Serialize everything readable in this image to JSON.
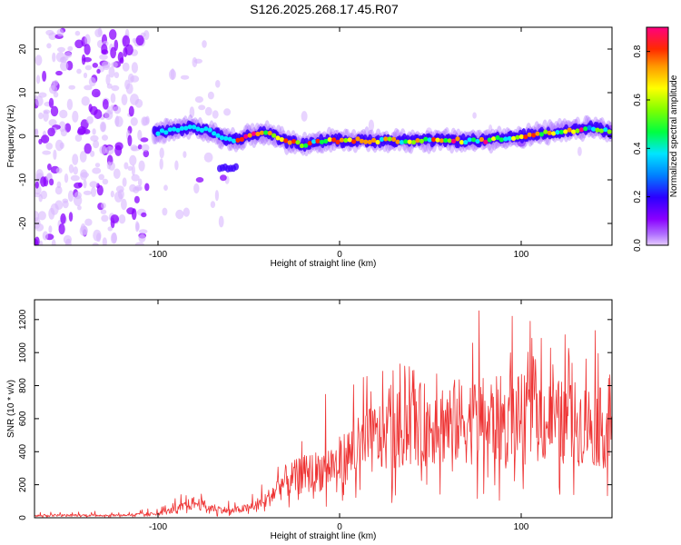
{
  "page": {
    "title": "S126.2025.268.17.45.R07"
  },
  "chart_data": [
    {
      "type": "heatmap",
      "title": "S126.2025.268.17.45.R07",
      "xlabel": "Height of straight line (km)",
      "ylabel": "Frequency (Hz)",
      "xlim": [
        -168,
        150
      ],
      "ylim": [
        -25,
        25
      ],
      "x_ticks": [
        -100,
        0,
        100
      ],
      "y_ticks": [
        -20,
        -10,
        0,
        10,
        20
      ],
      "colorbar": {
        "label": "Normalized spectral amplitude",
        "range": [
          0.0,
          0.9
        ],
        "ticks": [
          0.0,
          0.2,
          0.4,
          0.6,
          0.8
        ],
        "colormap": [
          "#e6ccff",
          "#8a00ff",
          "#2b00ff",
          "#0080ff",
          "#00e5ff",
          "#00ff40",
          "#80ff00",
          "#ffff00",
          "#ff9900",
          "#ff2a00",
          "#ff0080"
        ]
      },
      "signal_ridge": {
        "description_points_x": [
          -100,
          -80,
          -70,
          -60,
          -50,
          -40,
          -30,
          -20,
          -10,
          0,
          20,
          40,
          60,
          80,
          100,
          120,
          140,
          150
        ],
        "frequency_hz": [
          1,
          2,
          1,
          -1,
          0,
          1,
          -1,
          -2,
          -1,
          -1,
          -1,
          -1,
          -1,
          -1,
          0,
          1,
          2,
          1
        ]
      }
    },
    {
      "type": "line",
      "xlabel": "Height of straight line (km)",
      "ylabel": "SNR (10 * v/v)",
      "xlim": [
        -168,
        150
      ],
      "ylim": [
        0,
        1320
      ],
      "x_ticks": [
        -100,
        0,
        100
      ],
      "y_ticks": [
        0,
        200,
        400,
        600,
        800,
        1000,
        1200
      ],
      "color": "#ee3333",
      "envelope": {
        "x": [
          -168,
          -120,
          -100,
          -90,
          -80,
          -70,
          -60,
          -50,
          -40,
          -30,
          -20,
          -10,
          0,
          10,
          20,
          30,
          40,
          60,
          80,
          100,
          120,
          140,
          150
        ],
        "mean": [
          15,
          15,
          25,
          50,
          90,
          60,
          40,
          60,
          110,
          220,
          260,
          290,
          340,
          420,
          480,
          520,
          560,
          580,
          590,
          600,
          580,
          560,
          520
        ],
        "peak": [
          40,
          40,
          60,
          120,
          200,
          150,
          100,
          130,
          230,
          450,
          600,
          780,
          860,
          870,
          880,
          900,
          1000,
          1080,
          1320,
          1230,
          1090,
          1200,
          930
        ]
      }
    }
  ]
}
